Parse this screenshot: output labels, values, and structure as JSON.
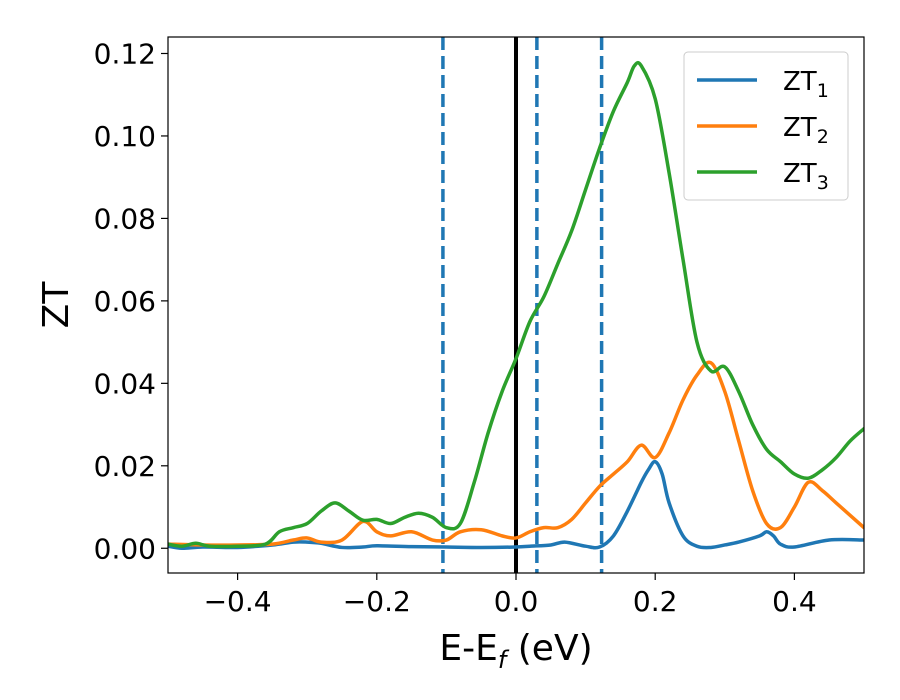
{
  "chart_data": {
    "type": "line",
    "xlabel": "E-E",
    "xlabel_sub": "f",
    "xlabel_unit": " (eV)",
    "ylabel": "ZT",
    "xlim": [
      -0.5,
      0.5
    ],
    "ylim": [
      -0.006,
      0.124
    ],
    "x_ticks": [
      -0.4,
      -0.2,
      0.0,
      0.2,
      0.4
    ],
    "x_tick_labels": [
      "−0.4",
      "−0.2",
      "0.0",
      "0.2",
      "0.4"
    ],
    "y_ticks": [
      0.0,
      0.02,
      0.04,
      0.06,
      0.08,
      0.1,
      0.12
    ],
    "y_tick_labels": [
      "0.00",
      "0.02",
      "0.04",
      "0.06",
      "0.08",
      "0.10",
      "0.12"
    ],
    "grid": false,
    "legend_position": "top-right",
    "vertical_lines": [
      {
        "x": -0.105,
        "style": "dashed",
        "color": "#1f77b4"
      },
      {
        "x": 0.0,
        "style": "solid",
        "color": "#000000"
      },
      {
        "x": 0.03,
        "style": "dashed",
        "color": "#1f77b4"
      },
      {
        "x": 0.123,
        "style": "dashed",
        "color": "#1f77b4"
      }
    ],
    "series": [
      {
        "name": "ZT",
        "name_sub": "1",
        "color": "#1f77b4",
        "x": [
          -0.5,
          -0.48,
          -0.45,
          -0.4,
          -0.35,
          -0.32,
          -0.3,
          -0.28,
          -0.25,
          -0.22,
          -0.2,
          -0.15,
          -0.1,
          -0.05,
          0.0,
          0.02,
          0.05,
          0.07,
          0.1,
          0.12,
          0.14,
          0.16,
          0.18,
          0.19,
          0.2,
          0.21,
          0.22,
          0.24,
          0.26,
          0.28,
          0.3,
          0.32,
          0.35,
          0.36,
          0.37,
          0.38,
          0.4,
          0.45,
          0.5
        ],
        "y": [
          0.0005,
          0.0,
          0.0003,
          0.0002,
          0.0008,
          0.0015,
          0.0015,
          0.0012,
          0.0002,
          0.0003,
          0.0006,
          0.0004,
          0.0003,
          0.0002,
          0.0003,
          0.0005,
          0.0008,
          0.0015,
          0.0005,
          0.0003,
          0.003,
          0.009,
          0.016,
          0.019,
          0.021,
          0.018,
          0.011,
          0.003,
          0.0005,
          0.0002,
          0.0008,
          0.0015,
          0.003,
          0.004,
          0.003,
          0.001,
          0.0003,
          0.002,
          0.002
        ]
      },
      {
        "name": "ZT",
        "name_sub": "2",
        "color": "#ff7f0e",
        "x": [
          -0.5,
          -0.45,
          -0.4,
          -0.35,
          -0.32,
          -0.3,
          -0.28,
          -0.25,
          -0.22,
          -0.2,
          -0.18,
          -0.15,
          -0.12,
          -0.1,
          -0.08,
          -0.05,
          -0.02,
          0.0,
          0.02,
          0.04,
          0.06,
          0.08,
          0.1,
          0.12,
          0.14,
          0.16,
          0.18,
          0.2,
          0.22,
          0.24,
          0.26,
          0.28,
          0.3,
          0.32,
          0.34,
          0.36,
          0.38,
          0.4,
          0.42,
          0.44,
          0.46,
          0.5
        ],
        "y": [
          0.001,
          0.0008,
          0.0008,
          0.001,
          0.002,
          0.0025,
          0.0015,
          0.002,
          0.0065,
          0.004,
          0.003,
          0.004,
          0.002,
          0.002,
          0.004,
          0.0045,
          0.003,
          0.0025,
          0.004,
          0.005,
          0.005,
          0.007,
          0.011,
          0.015,
          0.018,
          0.021,
          0.025,
          0.022,
          0.028,
          0.036,
          0.042,
          0.045,
          0.038,
          0.026,
          0.014,
          0.006,
          0.005,
          0.01,
          0.016,
          0.014,
          0.011,
          0.005
        ]
      },
      {
        "name": "ZT",
        "name_sub": "3",
        "color": "#2ca02c",
        "x": [
          -0.5,
          -0.48,
          -0.46,
          -0.44,
          -0.4,
          -0.36,
          -0.34,
          -0.32,
          -0.3,
          -0.28,
          -0.26,
          -0.24,
          -0.22,
          -0.2,
          -0.18,
          -0.16,
          -0.14,
          -0.12,
          -0.1,
          -0.08,
          -0.06,
          -0.04,
          -0.02,
          0.0,
          0.02,
          0.04,
          0.06,
          0.08,
          0.1,
          0.12,
          0.14,
          0.16,
          0.17,
          0.18,
          0.2,
          0.22,
          0.24,
          0.26,
          0.28,
          0.3,
          0.32,
          0.34,
          0.36,
          0.38,
          0.4,
          0.42,
          0.44,
          0.46,
          0.48,
          0.5
        ],
        "y": [
          0.001,
          0.0005,
          0.0012,
          0.0005,
          0.0005,
          0.001,
          0.004,
          0.005,
          0.006,
          0.009,
          0.011,
          0.009,
          0.0068,
          0.007,
          0.006,
          0.0075,
          0.0085,
          0.0075,
          0.005,
          0.006,
          0.016,
          0.028,
          0.038,
          0.046,
          0.055,
          0.061,
          0.069,
          0.077,
          0.087,
          0.097,
          0.106,
          0.113,
          0.117,
          0.117,
          0.109,
          0.091,
          0.07,
          0.05,
          0.043,
          0.044,
          0.038,
          0.03,
          0.024,
          0.021,
          0.018,
          0.017,
          0.019,
          0.022,
          0.026,
          0.029
        ]
      }
    ]
  }
}
